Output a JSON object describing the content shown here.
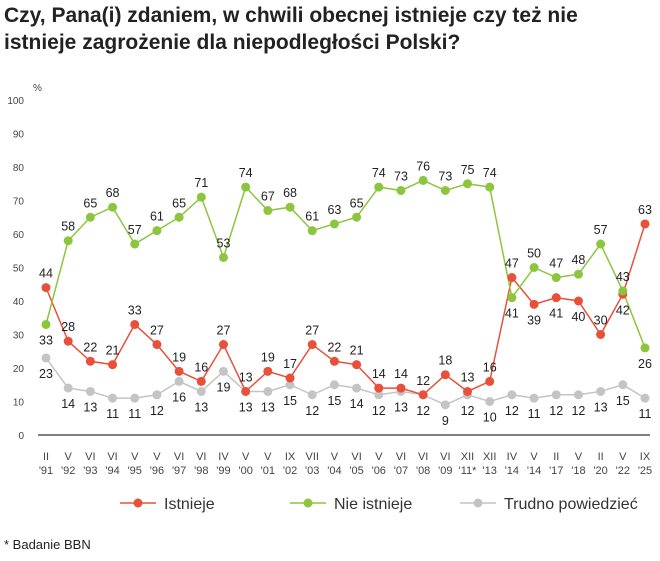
{
  "title": "Czy, Pana(i) zdaniem, w chwili obecnej istnieje czy też nie istnieje zagrożenie dla niepodległości Polski?",
  "note": "* Badanie BBN",
  "chart_data": {
    "type": "line",
    "title": "Czy, Pana(i) zdaniem, w chwili obecnej istnieje czy też nie istnieje zagrożenie dla niepodległości Polski?",
    "ylabel": "%",
    "ylim": [
      0,
      100
    ],
    "yticks": [
      0,
      10,
      20,
      30,
      40,
      50,
      60,
      70,
      80,
      90,
      100
    ],
    "grid": false,
    "legend": "bottom",
    "categories": [
      [
        "II",
        "'91"
      ],
      [
        "V",
        "'92"
      ],
      [
        "VI",
        "'93"
      ],
      [
        "VI",
        "'94"
      ],
      [
        "V",
        "'95"
      ],
      [
        "V",
        "'96"
      ],
      [
        "VI",
        "'97"
      ],
      [
        "VI",
        "'98"
      ],
      [
        "IV",
        "'99"
      ],
      [
        "V",
        "'00"
      ],
      [
        "V",
        "'01"
      ],
      [
        "IX",
        "'02"
      ],
      [
        "VII",
        "'03"
      ],
      [
        "V",
        "'04"
      ],
      [
        "VI",
        "'05"
      ],
      [
        "V",
        "'06"
      ],
      [
        "VI",
        "'07"
      ],
      [
        "VI",
        "'08"
      ],
      [
        "VI",
        "'09"
      ],
      [
        "XII",
        "'11*"
      ],
      [
        "XII",
        "'13"
      ],
      [
        "IV",
        "'14"
      ],
      [
        "V",
        "'14"
      ],
      [
        "II",
        "'17"
      ],
      [
        "V",
        "'18"
      ],
      [
        "II",
        "'20"
      ],
      [
        "V",
        "'22"
      ],
      [
        "IX",
        "'25"
      ]
    ],
    "series": [
      {
        "name": "Istnieje",
        "color": "#e8503a",
        "values": [
          44,
          28,
          22,
          21,
          33,
          27,
          19,
          16,
          27,
          13,
          19,
          17,
          27,
          22,
          21,
          14,
          14,
          12,
          18,
          13,
          16,
          47,
          39,
          41,
          40,
          30,
          42,
          63
        ]
      },
      {
        "name": "Nie istnieje",
        "color": "#8cc63e",
        "values": [
          33,
          58,
          65,
          68,
          57,
          61,
          65,
          71,
          53,
          74,
          67,
          68,
          61,
          63,
          65,
          74,
          73,
          76,
          73,
          75,
          74,
          41,
          50,
          47,
          48,
          57,
          43,
          26
        ]
      },
      {
        "name": "Trudno powiedzieć",
        "color": "#c4c4c4",
        "values": [
          23,
          14,
          13,
          11,
          11,
          12,
          16,
          13,
          19,
          13,
          13,
          15,
          12,
          15,
          14,
          12,
          13,
          12,
          9,
          12,
          10,
          12,
          11,
          12,
          12,
          13,
          15,
          11
        ]
      }
    ]
  }
}
